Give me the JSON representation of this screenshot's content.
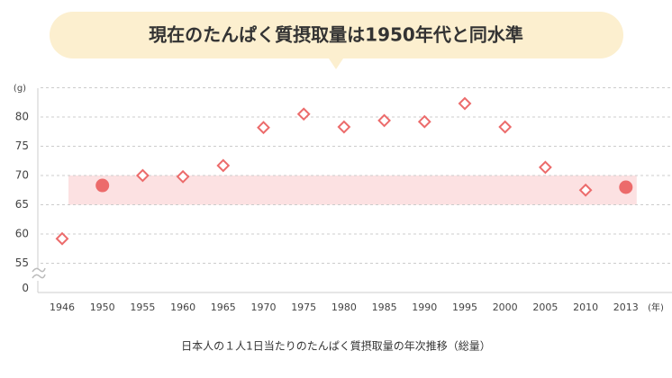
{
  "chart_data": {
    "type": "line",
    "title": "現在のたんぱく質摂取量は1950年代と同水準",
    "caption": "日本人の１人1日当たりのたんぱく質摂取量の年次推移（総量）",
    "y_unit": "(g)",
    "x_unit": "(年)",
    "categories": [
      "1946",
      "1950",
      "1955",
      "1960",
      "1965",
      "1970",
      "1975",
      "1980",
      "1985",
      "1990",
      "1995",
      "2000",
      "2005",
      "2010",
      "2013"
    ],
    "series": [
      {
        "color": "#ec6b6b",
        "values": [
          59.2,
          68.3,
          70.0,
          69.8,
          71.7,
          78.2,
          80.5,
          78.3,
          79.4,
          79.2,
          82.3,
          78.3,
          71.4,
          67.5,
          68.0
        ]
      }
    ],
    "highlight_indices": [
      1,
      14
    ],
    "band": [
      65,
      70
    ],
    "band_color": "#fce1e2",
    "ylim": [
      51,
      85
    ],
    "yticks": [
      0,
      55,
      60,
      65,
      70,
      75,
      80
    ],
    "axis_break": true,
    "grid": true
  }
}
